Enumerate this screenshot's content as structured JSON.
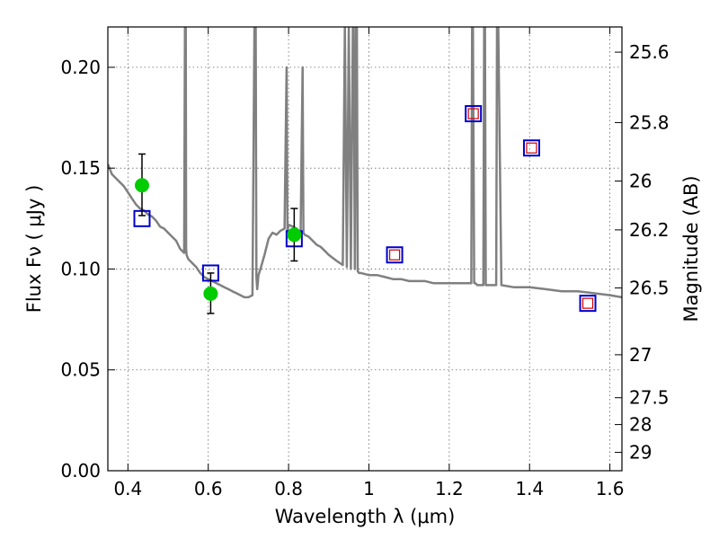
{
  "chart_data": {
    "type": "line",
    "xlabel": "Wavelength  λ (μm)",
    "ylabel": "Flux  Fν  ( μJy )",
    "y2label": "Magnitude (AB)",
    "xlim": [
      0.35,
      1.63
    ],
    "ylim": [
      0.0,
      0.22
    ],
    "x_ticks": [
      0.4,
      0.6,
      0.8,
      1.0,
      1.2,
      1.4,
      1.6
    ],
    "x_tick_labels": [
      "0.4",
      "0.6",
      "0.8",
      "1",
      "1.2",
      "1.4",
      "1.6"
    ],
    "y_ticks": [
      0.0,
      0.05,
      0.1,
      0.15,
      0.2
    ],
    "y_tick_labels": [
      "0.00",
      "0.05",
      "0.10",
      "0.15",
      "0.20"
    ],
    "y2_ticks": [
      {
        "label": "25.6",
        "flux": 0.2075
      },
      {
        "label": "25.8",
        "flux": 0.1726
      },
      {
        "label": "26",
        "flux": 0.1436
      },
      {
        "label": "26.2",
        "flux": 0.1194
      },
      {
        "label": "26.5",
        "flux": 0.0906
      },
      {
        "label": "27",
        "flux": 0.0575
      },
      {
        "label": "27.5",
        "flux": 0.0362
      },
      {
        "label": "28",
        "flux": 0.0229
      },
      {
        "label": "29",
        "flux": 0.0091
      }
    ],
    "grid": true,
    "series": [
      {
        "kind": "sed-model",
        "color": "#808080",
        "x": [
          0.35,
          0.36,
          0.37,
          0.38,
          0.39,
          0.4,
          0.41,
          0.42,
          0.43,
          0.44,
          0.45,
          0.46,
          0.47,
          0.48,
          0.49,
          0.5,
          0.51,
          0.52,
          0.53,
          0.54,
          0.542,
          0.544,
          0.545,
          0.546,
          0.548,
          0.55,
          0.56,
          0.57,
          0.58,
          0.59,
          0.6,
          0.61,
          0.62,
          0.63,
          0.64,
          0.65,
          0.66,
          0.67,
          0.68,
          0.69,
          0.7,
          0.71,
          0.715,
          0.718,
          0.72,
          0.722,
          0.725,
          0.73,
          0.74,
          0.75,
          0.76,
          0.77,
          0.78,
          0.79,
          0.795,
          0.797,
          0.8,
          0.81,
          0.82,
          0.83,
          0.835,
          0.837,
          0.84,
          0.85,
          0.86,
          0.87,
          0.88,
          0.89,
          0.9,
          0.92,
          0.935,
          0.94,
          0.945,
          0.95,
          0.955,
          0.96,
          0.962,
          0.965,
          0.968,
          0.97,
          0.972,
          0.975,
          0.98,
          1.0,
          1.02,
          1.04,
          1.06,
          1.08,
          1.1,
          1.12,
          1.14,
          1.16,
          1.18,
          1.2,
          1.22,
          1.24,
          1.255,
          1.257,
          1.259,
          1.262,
          1.265,
          1.27,
          1.28,
          1.285,
          1.287,
          1.289,
          1.291,
          1.295,
          1.31,
          1.315,
          1.317,
          1.319,
          1.322,
          1.33,
          1.36,
          1.4,
          1.44,
          1.48,
          1.52,
          1.56,
          1.6,
          1.63
        ],
        "y": [
          0.152,
          0.147,
          0.145,
          0.143,
          0.141,
          0.138,
          0.135,
          0.132,
          0.13,
          0.129,
          0.127,
          0.126,
          0.124,
          0.121,
          0.12,
          0.118,
          0.116,
          0.114,
          0.11,
          0.108,
          0.22,
          0.22,
          0.11,
          0.107,
          0.106,
          0.105,
          0.103,
          0.101,
          0.098,
          0.096,
          0.095,
          0.094,
          0.093,
          0.092,
          0.091,
          0.09,
          0.089,
          0.088,
          0.087,
          0.086,
          0.086,
          0.087,
          0.22,
          0.22,
          0.096,
          0.09,
          0.097,
          0.1,
          0.107,
          0.115,
          0.118,
          0.117,
          0.119,
          0.12,
          0.2,
          0.118,
          0.122,
          0.121,
          0.12,
          0.118,
          0.2,
          0.118,
          0.117,
          0.116,
          0.114,
          0.112,
          0.111,
          0.109,
          0.107,
          0.104,
          0.102,
          0.22,
          0.101,
          0.22,
          0.1,
          0.22,
          0.22,
          0.1,
          0.22,
          0.22,
          0.099,
          0.098,
          0.098,
          0.097,
          0.097,
          0.096,
          0.095,
          0.095,
          0.094,
          0.094,
          0.094,
          0.093,
          0.093,
          0.093,
          0.093,
          0.093,
          0.093,
          0.22,
          0.22,
          0.093,
          0.093,
          0.092,
          0.092,
          0.092,
          0.22,
          0.22,
          0.092,
          0.092,
          0.092,
          0.092,
          0.092,
          0.22,
          0.22,
          0.092,
          0.091,
          0.091,
          0.09,
          0.089,
          0.089,
          0.088,
          0.087,
          0.086
        ]
      },
      {
        "kind": "model-photometry",
        "marker": "blue-square",
        "color": "#0000cc",
        "x": [
          0.435,
          0.606,
          0.814,
          1.064,
          1.26,
          1.405,
          1.545
        ],
        "y": [
          0.125,
          0.098,
          0.115,
          0.107,
          0.177,
          0.16,
          0.083
        ]
      },
      {
        "kind": "observed-upper-limits",
        "marker": "red-square",
        "color": "#cc0000",
        "x": [
          1.064,
          1.26,
          1.405,
          1.545
        ],
        "y": [
          0.107,
          0.177,
          0.16,
          0.083
        ]
      },
      {
        "kind": "observed-photometry",
        "marker": "green-circle",
        "color": "#00cc00",
        "x": [
          0.435,
          0.606,
          0.814
        ],
        "y": [
          0.1415,
          0.0878,
          0.117
        ],
        "yerr_low": [
          0.1265,
          0.078,
          0.104
        ],
        "yerr_high": [
          0.157,
          0.098,
          0.13
        ]
      }
    ]
  }
}
